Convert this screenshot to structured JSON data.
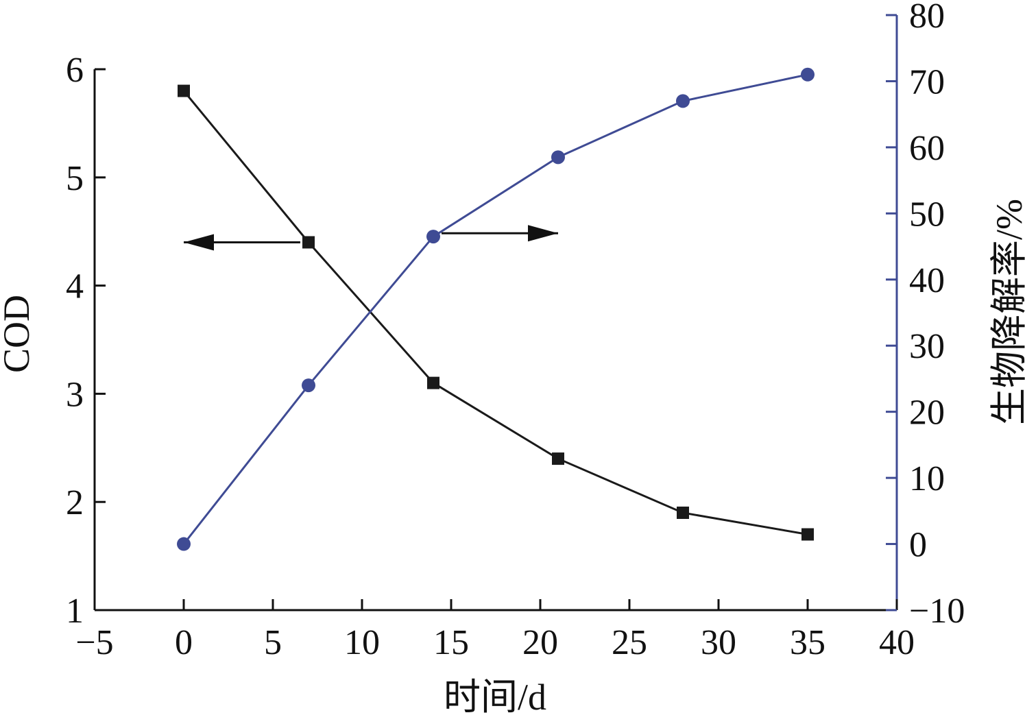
{
  "chart_data": {
    "type": "line",
    "x": [
      0,
      7,
      14,
      21,
      28,
      35
    ],
    "series": [
      {
        "axis": "left",
        "marker": "square",
        "color": "#1a1a1a",
        "values": [
          5.8,
          4.4,
          3.1,
          2.4,
          1.9,
          1.7
        ]
      },
      {
        "axis": "right",
        "marker": "circle",
        "color": "#3f4b94",
        "values": [
          0,
          24,
          46.5,
          58.5,
          67,
          71
        ]
      }
    ],
    "xlabel": "时间/d",
    "ylabel": "COD",
    "y2label": "生物降解率/%",
    "xlim": [
      -5,
      40
    ],
    "ylim": [
      1,
      6
    ],
    "y2lim": [
      -10,
      80
    ],
    "xticks": [
      -5,
      0,
      5,
      10,
      15,
      20,
      25,
      30,
      35,
      40
    ],
    "xtick_labels": [
      "−5",
      "0",
      "5",
      "10",
      "15",
      "20",
      "25",
      "30",
      "35",
      "40"
    ],
    "yticks": [
      1,
      2,
      3,
      4,
      5,
      6
    ],
    "ytick_labels": [
      "1",
      "2",
      "3",
      "4",
      "5",
      "6"
    ],
    "y2ticks": [
      -10,
      0,
      10,
      20,
      30,
      40,
      50,
      60,
      70,
      80
    ],
    "y2tick_labels": [
      "−10",
      "0",
      "10",
      "20",
      "30",
      "40",
      "50",
      "60",
      "70",
      "80"
    ],
    "annotations": [
      {
        "type": "arrow",
        "direction": "left",
        "target_series": 0,
        "anchor_x": 7,
        "anchor_y": 4.4
      },
      {
        "type": "arrow",
        "direction": "right",
        "target_series": 1,
        "anchor_x": 14,
        "anchor_y": 47
      }
    ],
    "grid": false,
    "legend": "none"
  }
}
